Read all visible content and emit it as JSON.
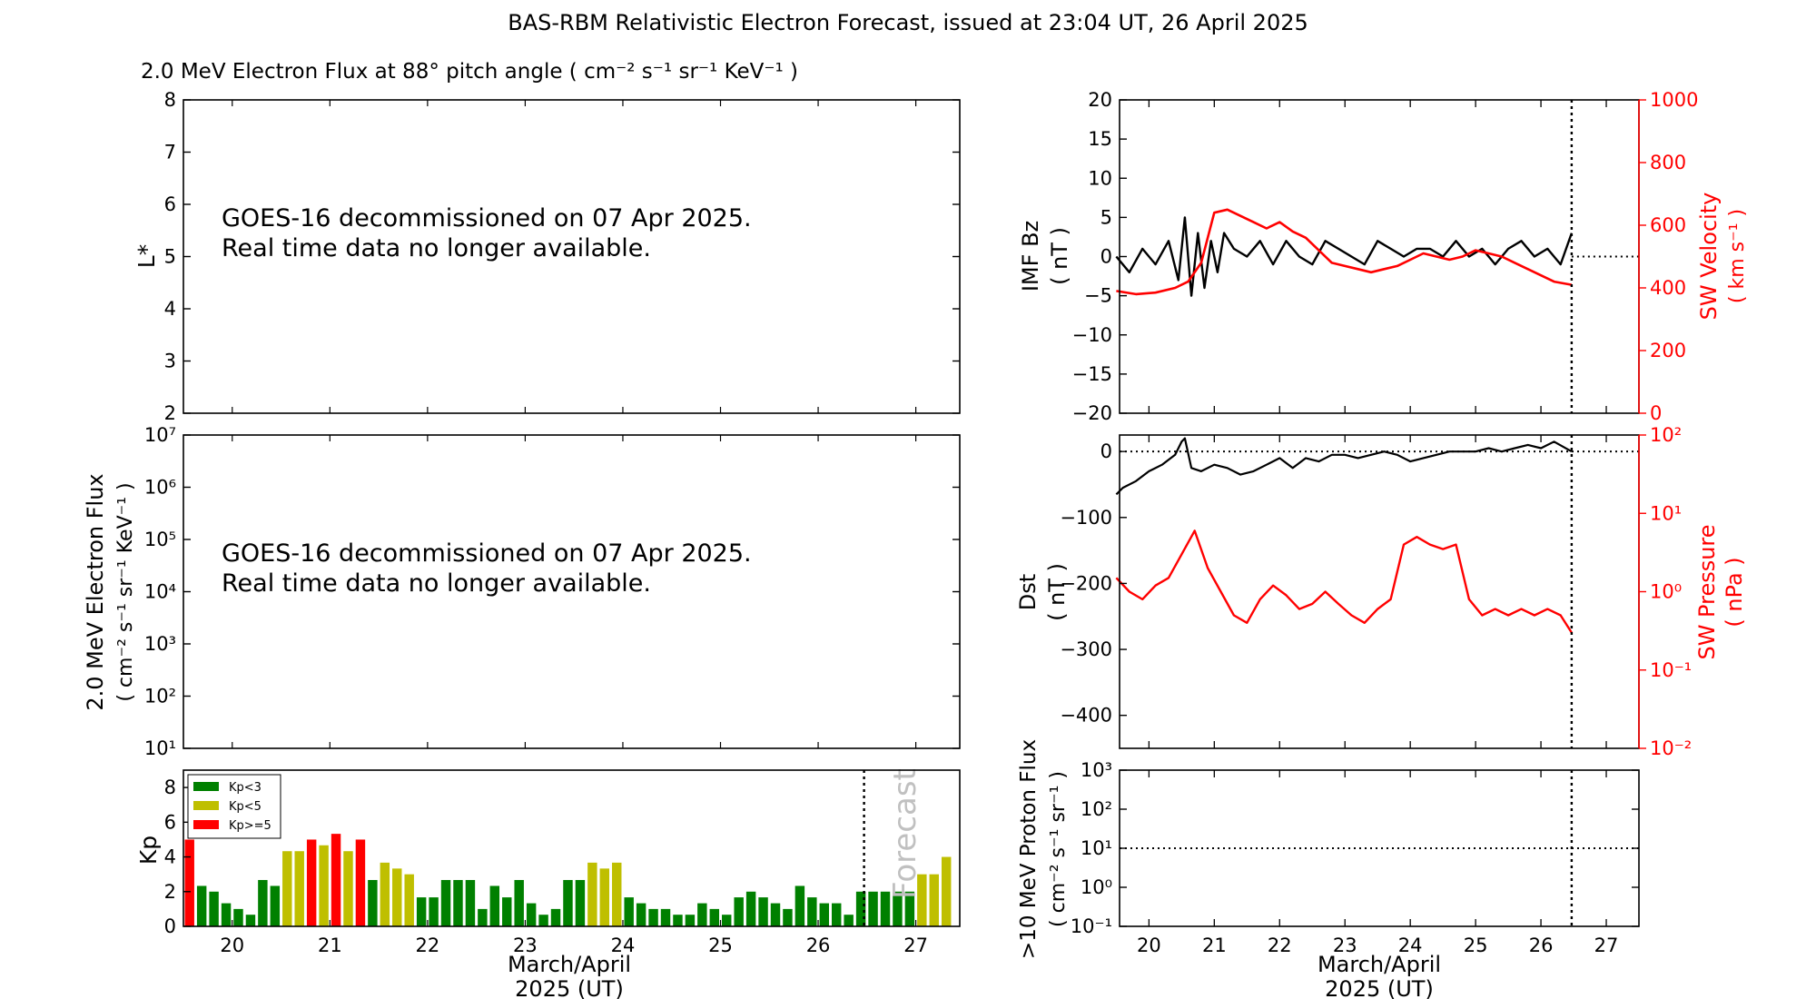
{
  "figure": {
    "title": "BAS-RBM Relativistic Electron Forecast, issued at 23:04 UT, 26 April 2025",
    "xlabel_line1": "March/April",
    "xlabel_line2": "2025 (UT)",
    "notice_line1": "GOES-16 decommissioned on 07 Apr 2025.",
    "notice_line2": "Real time data no longer available.",
    "forecast_label": "Forecast",
    "colors": {
      "black": "#000000",
      "red": "#ff0000",
      "green": "#008000",
      "olive": "#bfbf00",
      "forecast_text": "#c0c0c0"
    }
  },
  "chart_data": [
    {
      "id": "lstar",
      "type": "line",
      "title": "2.0 MeV Electron Flux at 88° pitch angle ( cm⁻² s⁻¹ sr⁻¹ KeV⁻¹ )",
      "ylabel": "L*",
      "ylim": [
        2,
        8
      ],
      "yticks": [
        "2",
        "3",
        "4",
        "5",
        "6",
        "7",
        "8"
      ],
      "xlim": [
        19.5,
        27.45
      ],
      "series": []
    },
    {
      "id": "flux",
      "type": "line",
      "ylabel_line1": "2.0 MeV Electron Flux",
      "ylabel_line2": "( cm⁻² s⁻¹ sr⁻¹ KeV⁻¹ )",
      "yscale": "log",
      "ylim": [
        10,
        10000000
      ],
      "yticks": [
        "10¹",
        "10²",
        "10³",
        "10⁴",
        "10⁵",
        "10⁶",
        "10⁷"
      ],
      "series": []
    },
    {
      "id": "kp",
      "type": "bar",
      "ylabel": "Kp",
      "ylim": [
        0,
        9
      ],
      "yticks": [
        "0",
        "2",
        "4",
        "6",
        "8"
      ],
      "xlim": [
        19.5,
        27.45
      ],
      "xticks": [
        "20",
        "21",
        "22",
        "23",
        "24",
        "25",
        "26",
        "27"
      ],
      "bar_step_days": 0.125,
      "first_bar_day": 19.5,
      "values": [
        5.0,
        2.33,
        2.0,
        1.33,
        1.0,
        0.67,
        2.67,
        2.33,
        4.33,
        4.33,
        5.0,
        4.67,
        5.33,
        4.33,
        5.0,
        2.67,
        3.67,
        3.33,
        3.0,
        1.67,
        1.67,
        2.67,
        2.67,
        2.67,
        1.0,
        2.33,
        1.67,
        2.67,
        1.33,
        0.67,
        1.0,
        2.67,
        2.67,
        3.67,
        3.33,
        3.67,
        1.67,
        1.33,
        1.0,
        1.0,
        0.67,
        0.67,
        1.33,
        1.0,
        0.67,
        1.67,
        2.0,
        1.67,
        1.33,
        1.0,
        2.33,
        1.67,
        1.33,
        1.33,
        0.67,
        2.0,
        2.0,
        2.0,
        2.0,
        2.0,
        3.0,
        3.0,
        4.0
      ],
      "forecast_start_day": 26.47,
      "legend": [
        "Kp<3",
        "Kp<5",
        "Kp>=5"
      ],
      "legend_position": "top-left"
    },
    {
      "id": "bz_vsw",
      "type": "line",
      "ylabel_line1": "IMF Bz",
      "ylabel_line2": "( nT )",
      "ylim": [
        -20,
        20
      ],
      "yticks": [
        "20",
        "15",
        "10",
        "5",
        "0",
        "−10",
        "−15",
        "−20"
      ],
      "yticks_extra": [
        "−5"
      ],
      "y2label_line1": "SW Velocity",
      "y2label_line2": "( km s⁻¹ )",
      "y2lim": [
        0,
        1000
      ],
      "y2ticks": [
        "0",
        "200",
        "400",
        "600",
        "800",
        "1000"
      ],
      "current_day": 26.47,
      "series": [
        {
          "color": "black",
          "x": [
            19.5,
            19.7,
            19.9,
            20.1,
            20.3,
            20.45,
            20.55,
            20.65,
            20.75,
            20.85,
            20.95,
            21.05,
            21.15,
            21.3,
            21.5,
            21.7,
            21.9,
            22.1,
            22.3,
            22.5,
            22.7,
            22.9,
            23.1,
            23.3,
            23.5,
            23.7,
            23.9,
            24.1,
            24.3,
            24.5,
            24.7,
            24.9,
            25.1,
            25.3,
            25.5,
            25.7,
            25.9,
            26.1,
            26.3,
            26.47
          ],
          "y": [
            0,
            -2,
            1,
            -1,
            2,
            -3,
            5,
            -5,
            3,
            -4,
            2,
            -2,
            3,
            1,
            0,
            2,
            -1,
            2,
            0,
            -1,
            2,
            1,
            0,
            -1,
            2,
            1,
            0,
            1,
            1,
            0,
            2,
            0,
            1,
            -1,
            1,
            2,
            0,
            1,
            -1,
            3
          ]
        },
        {
          "color": "red",
          "x": [
            19.5,
            19.8,
            20.1,
            20.4,
            20.6,
            20.8,
            21.0,
            21.2,
            21.4,
            21.6,
            21.8,
            22.0,
            22.2,
            22.4,
            22.6,
            22.8,
            23.0,
            23.2,
            23.4,
            23.6,
            23.8,
            24.0,
            24.2,
            24.4,
            24.6,
            24.8,
            25.0,
            25.2,
            25.4,
            25.6,
            25.8,
            26.0,
            26.2,
            26.47
          ],
          "y": [
            390,
            380,
            385,
            400,
            420,
            480,
            640,
            650,
            630,
            610,
            590,
            610,
            580,
            560,
            520,
            480,
            470,
            460,
            450,
            460,
            470,
            490,
            510,
            500,
            490,
            500,
            520,
            510,
            500,
            480,
            460,
            440,
            420,
            410
          ]
        }
      ]
    },
    {
      "id": "dst_psw",
      "type": "line",
      "ylabel_line1": "Dst",
      "ylabel_line2": "( nT )",
      "ylim": [
        -450,
        25
      ],
      "yticks": [
        "0",
        "−100",
        "−200",
        "−300",
        "−400"
      ],
      "y2label_line1": "SW Pressure",
      "y2label_line2": "( nPa )",
      "y2scale": "log",
      "y2lim": [
        0.01,
        100
      ],
      "y2ticks": [
        "10⁻²",
        "10⁻¹",
        "10⁰",
        "10¹",
        "10²"
      ],
      "current_day": 26.47,
      "series": [
        {
          "color": "black",
          "x": [
            19.5,
            19.6,
            19.8,
            20.0,
            20.2,
            20.4,
            20.5,
            20.55,
            20.65,
            20.8,
            21.0,
            21.2,
            21.4,
            21.6,
            21.8,
            22.0,
            22.2,
            22.4,
            22.6,
            22.8,
            23.0,
            23.2,
            23.4,
            23.6,
            23.8,
            24.0,
            24.2,
            24.4,
            24.6,
            24.8,
            25.0,
            25.2,
            25.4,
            25.6,
            25.8,
            26.0,
            26.2,
            26.47
          ],
          "y": [
            -65,
            -55,
            -45,
            -30,
            -20,
            -5,
            15,
            20,
            -25,
            -30,
            -20,
            -25,
            -35,
            -30,
            -20,
            -10,
            -25,
            -10,
            -15,
            -5,
            -5,
            -10,
            -5,
            0,
            -5,
            -15,
            -10,
            -5,
            0,
            0,
            0,
            5,
            0,
            5,
            10,
            5,
            15,
            0
          ]
        },
        {
          "color": "red",
          "x": [
            19.5,
            19.7,
            19.9,
            20.1,
            20.3,
            20.5,
            20.7,
            20.9,
            21.1,
            21.3,
            21.5,
            21.7,
            21.9,
            22.1,
            22.3,
            22.5,
            22.7,
            22.9,
            23.1,
            23.3,
            23.5,
            23.7,
            23.9,
            24.1,
            24.3,
            24.5,
            24.7,
            24.9,
            25.1,
            25.3,
            25.5,
            25.7,
            25.9,
            26.1,
            26.3,
            26.47
          ],
          "y": [
            1.5,
            1.0,
            0.8,
            1.2,
            1.5,
            3.0,
            6.0,
            2.0,
            1.0,
            0.5,
            0.4,
            0.8,
            1.2,
            0.9,
            0.6,
            0.7,
            1.0,
            0.7,
            0.5,
            0.4,
            0.6,
            0.8,
            4.0,
            5.0,
            4.0,
            3.5,
            4.0,
            0.8,
            0.5,
            0.6,
            0.5,
            0.6,
            0.5,
            0.6,
            0.5,
            0.3
          ]
        }
      ]
    },
    {
      "id": "proton",
      "type": "line",
      "ylabel_line1": ">10 MeV Proton Flux",
      "ylabel_line2": "( cm⁻² s⁻¹ sr⁻¹ )",
      "yscale": "log",
      "ylim": [
        0.1,
        1000
      ],
      "yticks": [
        "10⁻¹",
        "10⁰",
        "10¹",
        "10²",
        "10³"
      ],
      "threshold": 10,
      "xticks": [
        "20",
        "21",
        "22",
        "23",
        "24",
        "25",
        "26",
        "27"
      ],
      "current_day": 26.47,
      "series": []
    }
  ]
}
